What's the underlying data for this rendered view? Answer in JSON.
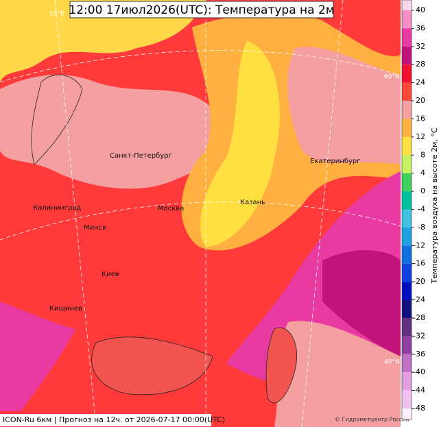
{
  "title": "12:00 17июл2026(UTC): Температура на 2м",
  "footer": "ICON-Ru 6км | Прогноз на  12ч. от 2026-07-17 00:00(UTC)",
  "credit": "© Гидрометцентр России",
  "grid_labels": [
    "15°E",
    "60°N",
    "40°N"
  ],
  "cities": [
    "Санкт-Петербург",
    "Калининград",
    "Минск",
    "Москва",
    "Казань",
    "Екатеринбург",
    "Киев",
    "Кишинев"
  ],
  "colorbar": {
    "label": "Температура воздуха на высоте 2м, °С",
    "ticks": [
      40,
      36,
      32,
      28,
      24,
      20,
      16,
      12,
      8,
      4,
      0,
      -4,
      -8,
      -12,
      -16,
      -20,
      -24,
      -28,
      -32,
      -36,
      -40,
      -44,
      -48
    ],
    "colors": [
      "#fcd7ea",
      "#f58fc8",
      "#e83aa0",
      "#c0147a",
      "#f01030",
      "#ff4a3a",
      "#f5a0a0",
      "#ffb040",
      "#ffe040",
      "#c8f060",
      "#40d060",
      "#00c0a0",
      "#40c0e0",
      "#20a0e0",
      "#1070e0",
      "#1040e0",
      "#0010c0",
      "#101080",
      "#603080",
      "#9040a0",
      "#c070c0",
      "#e0a0e0",
      "#f0c0f0",
      "#fff0ff"
    ]
  }
}
